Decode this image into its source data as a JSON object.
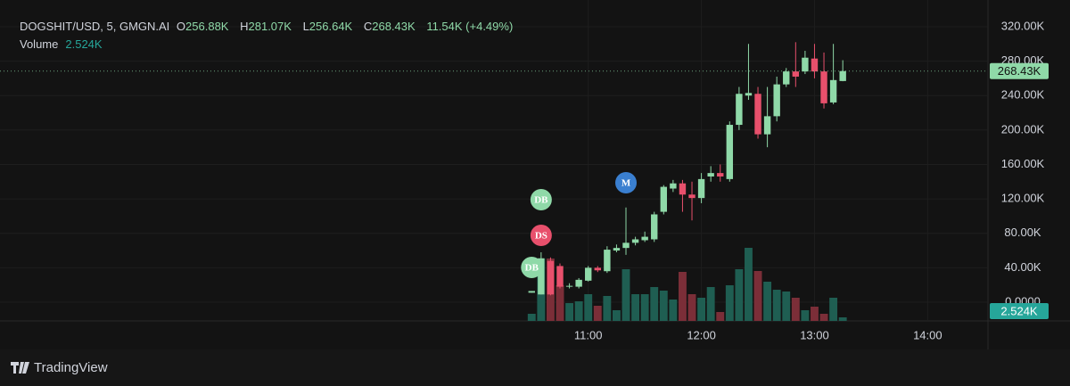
{
  "chart_data": {
    "type": "candlestick",
    "title": "DOGSHIT/USD, 5, GMGN.AI",
    "ohlc_header": {
      "open_label": "O",
      "open": "256.88K",
      "high_label": "H",
      "high": "281.07K",
      "low_label": "L",
      "low": "256.64K",
      "close_label": "C",
      "change": "11.54K (+4.49%)"
    },
    "last_price": {
      "value": 268430,
      "label": "268.43K"
    },
    "volume_title": "Volume",
    "x": [
      "10:30",
      "10:35",
      "10:40",
      "10:45",
      "10:50",
      "10:55",
      "11:00",
      "11:05",
      "11:10",
      "11:15",
      "11:20",
      "11:25",
      "11:30",
      "11:35",
      "11:40",
      "11:45",
      "11:50",
      "11:55",
      "12:00",
      "12:05",
      "12:10",
      "12:15",
      "12:20",
      "12:25",
      "12:30",
      "12:35",
      "12:40",
      "12:45",
      "12:50",
      "12:55",
      "13:00",
      "13:05",
      "13:10",
      "13:15"
    ],
    "open": [
      11000,
      9000,
      48000,
      42000,
      18000,
      18000,
      25000,
      40000,
      36000,
      60000,
      63000,
      69000,
      72000,
      73000,
      105000,
      132000,
      138000,
      125000,
      121000,
      146000,
      150000,
      143000,
      206000,
      240000,
      242000,
      195000,
      216000,
      253000,
      268000,
      268000,
      283000,
      268000,
      232000,
      256880
    ],
    "high": [
      13000,
      58000,
      52000,
      45000,
      22000,
      28000,
      42000,
      42000,
      65000,
      67000,
      110000,
      76000,
      82000,
      105000,
      136000,
      142000,
      142000,
      140000,
      150000,
      158000,
      160000,
      210000,
      250000,
      300000,
      250000,
      250000,
      262000,
      272000,
      302000,
      292000,
      300000,
      290000,
      300000,
      281070
    ],
    "low": [
      11000,
      9000,
      8000,
      16000,
      16000,
      16000,
      24000,
      35000,
      34000,
      58000,
      55000,
      66000,
      70000,
      70000,
      102000,
      128000,
      105000,
      95000,
      115000,
      140000,
      140000,
      140000,
      200000,
      235000,
      190000,
      180000,
      210000,
      250000,
      250000,
      265000,
      260000,
      225000,
      230000,
      256640
    ],
    "close": [
      13000,
      51000,
      9000,
      18000,
      19000,
      26000,
      40000,
      37000,
      61000,
      63000,
      69000,
      73000,
      76000,
      102000,
      134000,
      138000,
      125000,
      121000,
      143000,
      150000,
      146000,
      206000,
      242000,
      243000,
      195000,
      216000,
      253000,
      268000,
      262000,
      284000,
      268000,
      231000,
      258000,
      268430
    ],
    "volume": {
      "values": [
        5040,
        44100,
        44100,
        25200,
        12600,
        13860,
        18900,
        10710,
        17640,
        7560,
        36540,
        18900,
        18900,
        23940,
        21420,
        15120,
        34650,
        18900,
        16380,
        23940,
        6300,
        25200,
        36540,
        51660,
        35280,
        27720,
        22050,
        20790,
        16380,
        7560,
        10080,
        5040,
        16380,
        2524
      ],
      "last_label": "2.524K",
      "up_color": "#1f5e52",
      "down_color": "#7b2e38",
      "label_color": "#26a69a"
    },
    "up_color": "#8fd9a8",
    "down_color": "#e8506c",
    "xlim": [
      "05:48",
      "14:32"
    ],
    "xticks": [
      "11:00",
      "12:00",
      "13:00",
      "14:00"
    ],
    "ylim": [
      -21750,
      351000
    ],
    "yticks": [
      {
        "value": 0,
        "label": "0.0000"
      },
      {
        "value": 40000,
        "label": "40.00K"
      },
      {
        "value": 80000,
        "label": "80.00K"
      },
      {
        "value": 120000,
        "label": "120.00K"
      },
      {
        "value": 160000,
        "label": "160.00K"
      },
      {
        "value": 200000,
        "label": "200.00K"
      },
      {
        "value": 240000,
        "label": "240.00K"
      },
      {
        "value": 280000,
        "label": "280.00K"
      },
      {
        "value": 320000,
        "label": "320.00K"
      }
    ],
    "grid": true,
    "markers": [
      {
        "label": "DB",
        "x": "10:35",
        "color": "#8fd9a8"
      },
      {
        "label": "DS",
        "x": "10:35",
        "color": "#e8506c"
      },
      {
        "label": "DB",
        "x": "10:30",
        "color": "#8fd9a8"
      },
      {
        "label": "M",
        "x": "11:20",
        "color": "#3a7fd0"
      }
    ]
  },
  "footer": {
    "brand": "TradingView"
  }
}
